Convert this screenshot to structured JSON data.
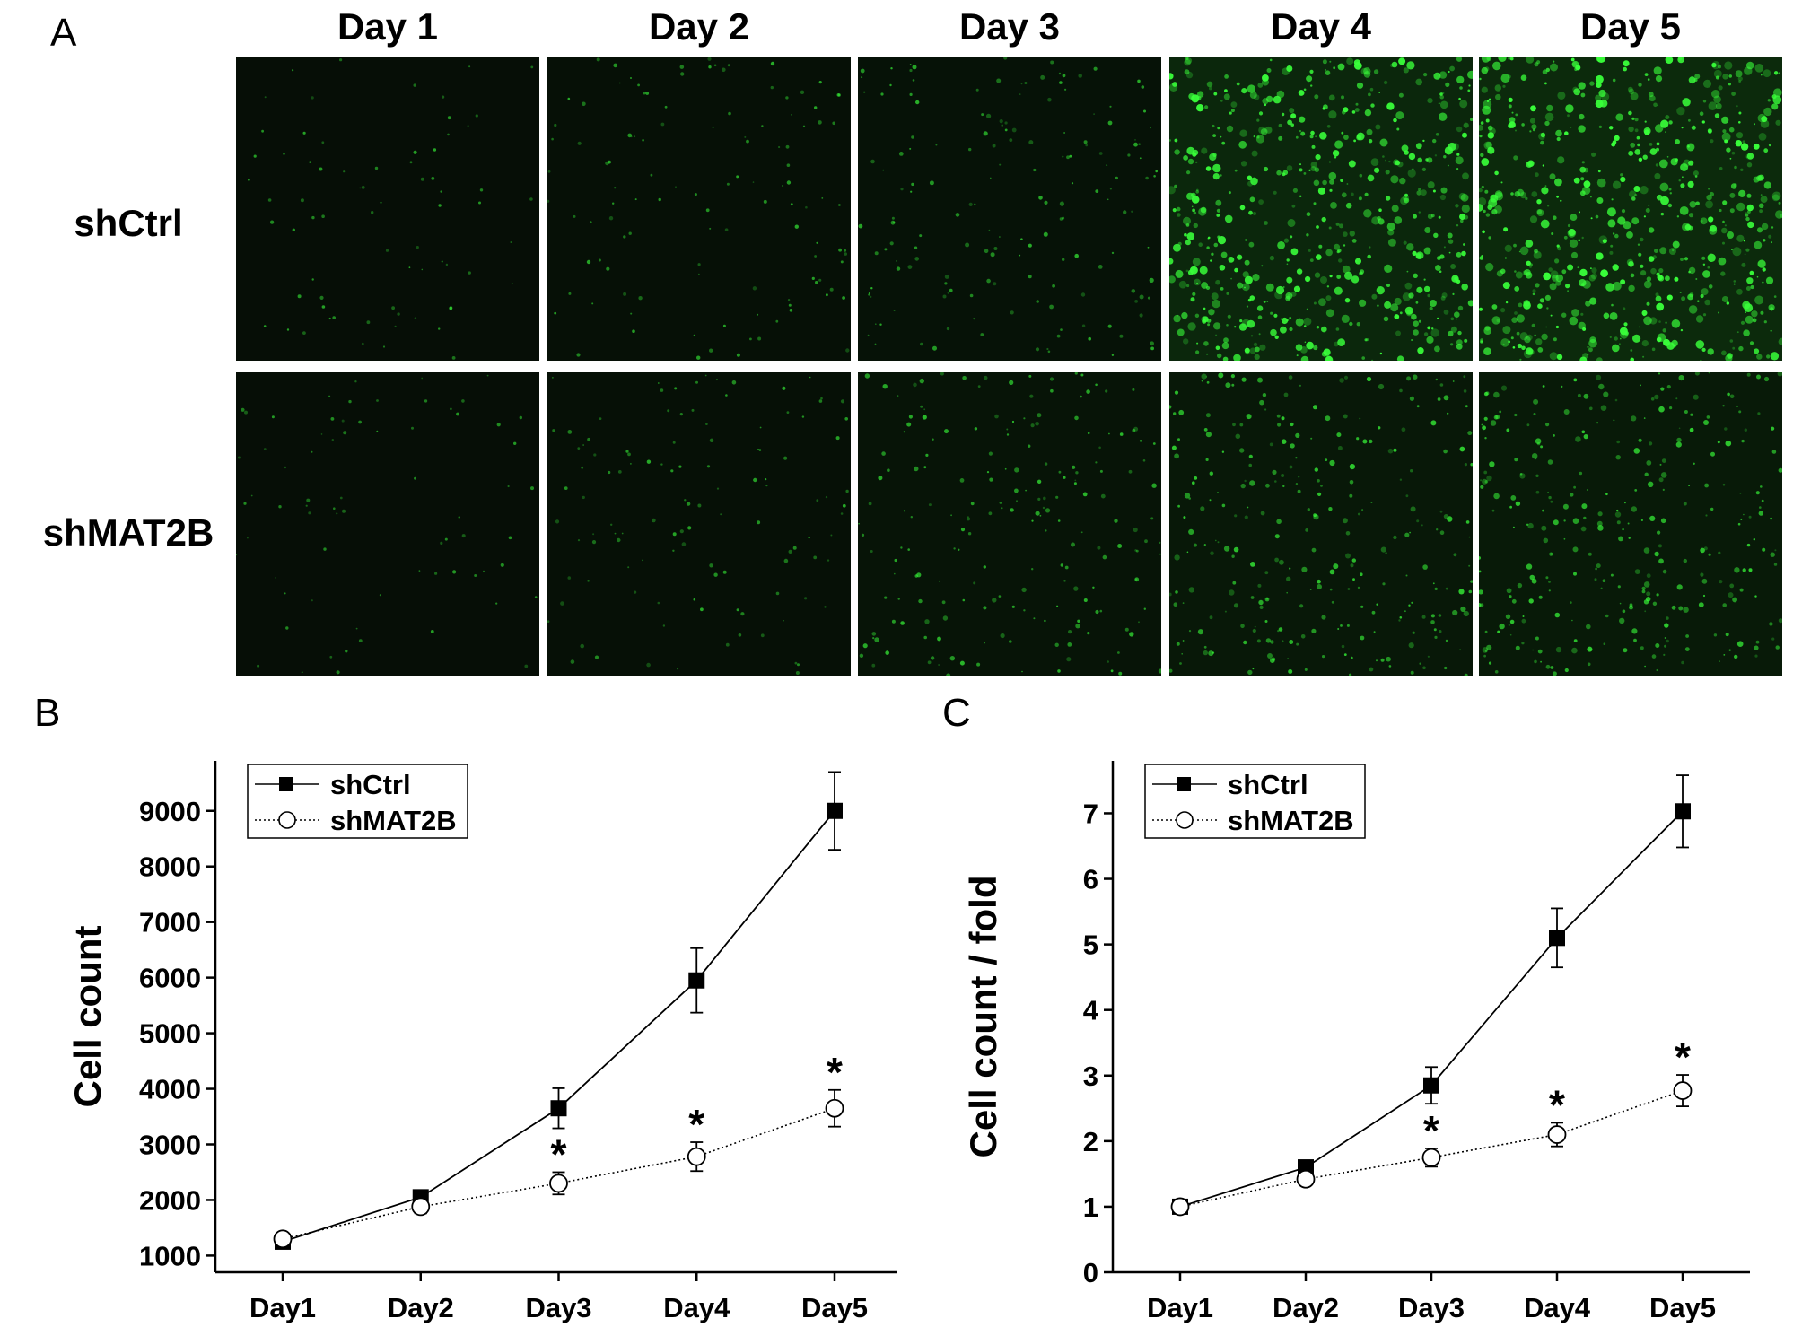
{
  "figure": {
    "panel_a_label": "A",
    "panel_b_label": "B",
    "panel_c_label": "C",
    "columns": [
      "Day 1",
      "Day 2",
      "Day 3",
      "Day 4",
      "Day 5"
    ],
    "rows": [
      "shCtrl",
      "shMAT2B"
    ],
    "fluorescence_density": {
      "shCtrl": [
        0.05,
        0.12,
        0.2,
        0.9,
        1.0
      ],
      "shMAT2B": [
        0.05,
        0.12,
        0.25,
        0.4,
        0.45
      ]
    },
    "colors": {
      "fluorescence": "#39ff3a",
      "background": "#050805",
      "line": "#000000"
    }
  },
  "chart_data": [
    {
      "type": "line",
      "panel": "B",
      "categories": [
        "Day1",
        "Day2",
        "Day3",
        "Day4",
        "Day5"
      ],
      "ylabel": "Cell count",
      "xlabel": "",
      "ylim": [
        700,
        9900
      ],
      "yticks": [
        1000,
        2000,
        3000,
        4000,
        5000,
        6000,
        7000,
        8000,
        9000
      ],
      "legend_position": "top-left",
      "series": [
        {
          "name": "shCtrl",
          "marker": "filled-square",
          "style": "solid",
          "values": [
            1250,
            2050,
            3650,
            5950,
            9000
          ],
          "errors": [
            50,
            100,
            360,
            580,
            700
          ]
        },
        {
          "name": "shMAT2B",
          "marker": "open-circle",
          "style": "dotted",
          "values": [
            1300,
            1880,
            2300,
            2780,
            3650
          ],
          "errors": [
            100,
            120,
            200,
            260,
            330
          ]
        }
      ],
      "annotations": [
        {
          "category": "Day3",
          "text": "*"
        },
        {
          "category": "Day4",
          "text": "*"
        },
        {
          "category": "Day5",
          "text": "*"
        }
      ]
    },
    {
      "type": "line",
      "panel": "C",
      "categories": [
        "Day1",
        "Day2",
        "Day3",
        "Day4",
        "Day5"
      ],
      "ylabel": "Cell count / fold",
      "xlabel": "",
      "ylim": [
        0,
        7.8
      ],
      "yticks": [
        0,
        1,
        2,
        3,
        4,
        5,
        6,
        7
      ],
      "legend_position": "top-left",
      "series": [
        {
          "name": "shCtrl",
          "marker": "filled-square",
          "style": "solid",
          "values": [
            1.0,
            1.6,
            2.85,
            5.1,
            7.03
          ],
          "errors": [
            0.05,
            0.08,
            0.28,
            0.45,
            0.55
          ]
        },
        {
          "name": "shMAT2B",
          "marker": "open-circle",
          "style": "dotted",
          "values": [
            1.0,
            1.42,
            1.75,
            2.1,
            2.77
          ],
          "errors": [
            0.08,
            0.08,
            0.14,
            0.18,
            0.24
          ]
        }
      ],
      "annotations": [
        {
          "category": "Day3",
          "text": "*"
        },
        {
          "category": "Day4",
          "text": "*"
        },
        {
          "category": "Day5",
          "text": "*"
        }
      ]
    }
  ]
}
